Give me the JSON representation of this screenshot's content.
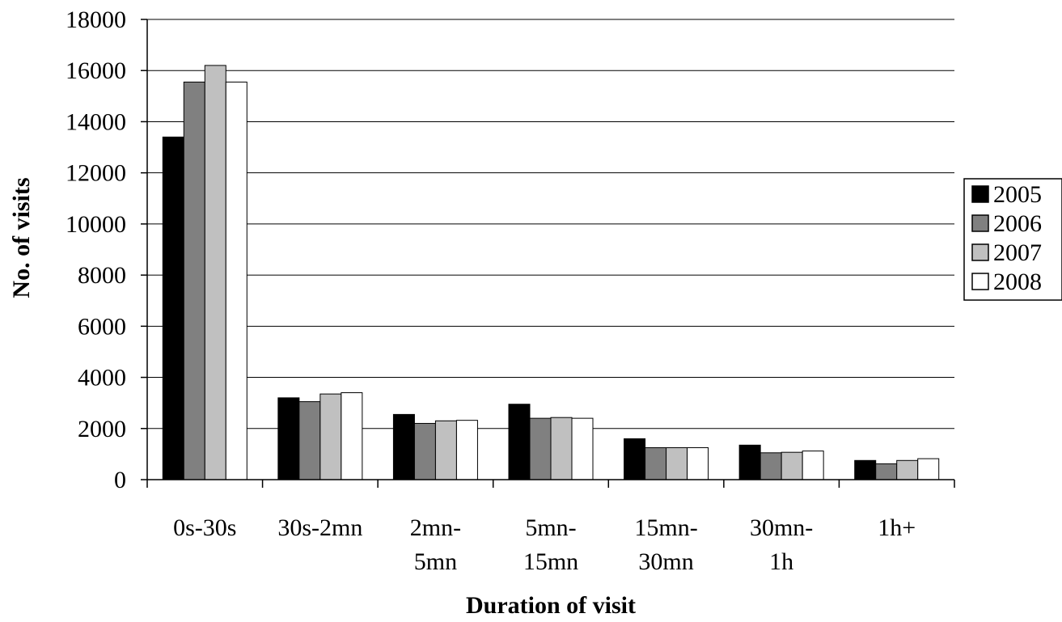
{
  "chart_data": {
    "type": "bar",
    "title": "",
    "xlabel": "Duration of visit",
    "ylabel": "No. of visits",
    "ylim": [
      0,
      18000
    ],
    "yticks": [
      0,
      2000,
      4000,
      6000,
      8000,
      10000,
      12000,
      14000,
      16000,
      18000
    ],
    "grid": true,
    "legend_position": "right",
    "categories": [
      [
        "0s-30s"
      ],
      [
        "30s-2mn"
      ],
      [
        "2mn-",
        "5mn"
      ],
      [
        "5mn-",
        "15mn"
      ],
      [
        "15mn-",
        "30mn"
      ],
      [
        "30mn-",
        "1h"
      ],
      [
        "1h+"
      ]
    ],
    "series": [
      {
        "name": "2005",
        "color": "#000000",
        "values": [
          13400,
          3200,
          2550,
          2950,
          1600,
          1350,
          750
        ]
      },
      {
        "name": "2006",
        "color": "#808080",
        "values": [
          15550,
          3050,
          2200,
          2400,
          1250,
          1050,
          620
        ]
      },
      {
        "name": "2007",
        "color": "#c0c0c0",
        "values": [
          16200,
          3350,
          2300,
          2430,
          1250,
          1070,
          750
        ]
      },
      {
        "name": "2008",
        "color": "#ffffff",
        "values": [
          15550,
          3400,
          2320,
          2400,
          1250,
          1120,
          820
        ]
      }
    ]
  }
}
